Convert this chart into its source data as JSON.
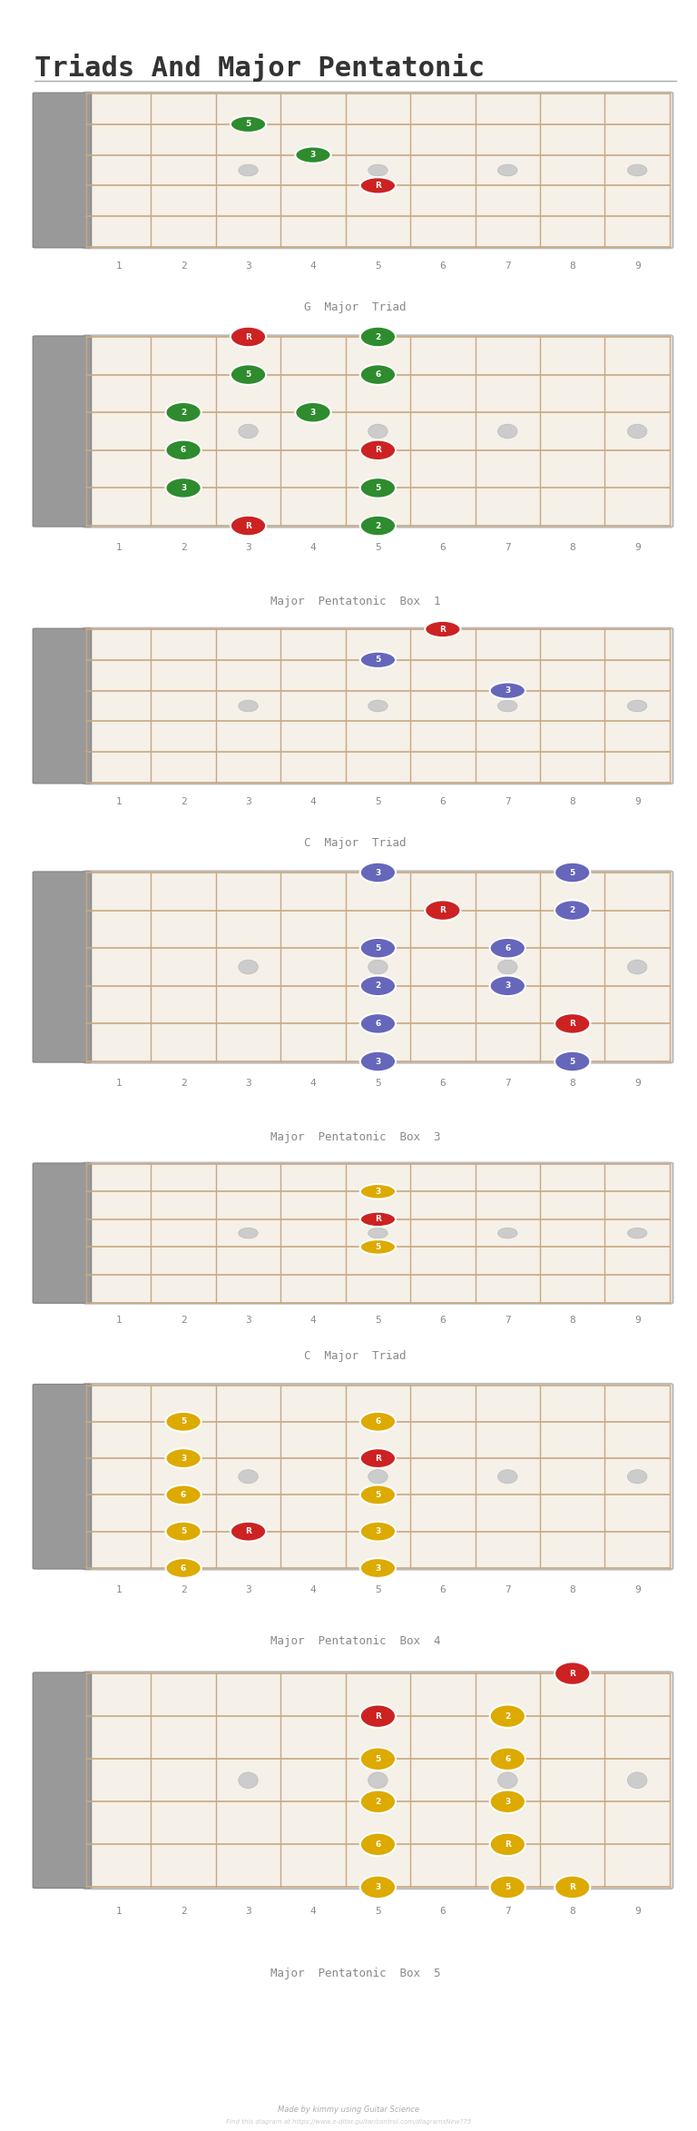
{
  "title": "Triads And Major Pentatonic",
  "bg_color": "#ffffff",
  "fretboard_bg": "#f5f0e8",
  "nut_color": "#999999",
  "string_color": "#c8a882",
  "fret_color": "#c8a882",
  "dot_color": "#cccccc",
  "num_strings": 6,
  "num_frets": 9,
  "diagrams": [
    {
      "title": "G  Major  Triad",
      "notes": [
        {
          "fret": 3,
          "string": 2,
          "label": "5",
          "color": "#2e8b2e"
        },
        {
          "fret": 4,
          "string": 3,
          "label": "3",
          "color": "#2e8b2e"
        },
        {
          "fret": 5,
          "string": 4,
          "label": "R",
          "color": "#cc2222"
        }
      ]
    },
    {
      "title": "Major  Pentatonic  Box  1",
      "notes": [
        {
          "fret": 3,
          "string": 1,
          "label": "R",
          "color": "#cc2222"
        },
        {
          "fret": 3,
          "string": 2,
          "label": "5",
          "color": "#2e8b2e"
        },
        {
          "fret": 2,
          "string": 3,
          "label": "2",
          "color": "#2e8b2e"
        },
        {
          "fret": 2,
          "string": 4,
          "label": "6",
          "color": "#2e8b2e"
        },
        {
          "fret": 2,
          "string": 5,
          "label": "3",
          "color": "#2e8b2e"
        },
        {
          "fret": 3,
          "string": 6,
          "label": "R",
          "color": "#cc2222"
        },
        {
          "fret": 5,
          "string": 1,
          "label": "2",
          "color": "#2e8b2e"
        },
        {
          "fret": 5,
          "string": 2,
          "label": "6",
          "color": "#2e8b2e"
        },
        {
          "fret": 4,
          "string": 3,
          "label": "3",
          "color": "#2e8b2e"
        },
        {
          "fret": 5,
          "string": 4,
          "label": "R",
          "color": "#cc2222"
        },
        {
          "fret": 5,
          "string": 5,
          "label": "5",
          "color": "#2e8b2e"
        },
        {
          "fret": 5,
          "string": 6,
          "label": "2",
          "color": "#2e8b2e"
        }
      ]
    },
    {
      "title": "C  Major  Triad",
      "notes": [
        {
          "fret": 6,
          "string": 1,
          "label": "R",
          "color": "#cc2222"
        },
        {
          "fret": 5,
          "string": 2,
          "label": "5",
          "color": "#6666bb"
        },
        {
          "fret": 7,
          "string": 3,
          "label": "3",
          "color": "#6666bb"
        }
      ]
    },
    {
      "title": "Major  Pentatonic  Box  3",
      "notes": [
        {
          "fret": 5,
          "string": 1,
          "label": "3",
          "color": "#6666bb"
        },
        {
          "fret": 8,
          "string": 1,
          "label": "5",
          "color": "#6666bb"
        },
        {
          "fret": 6,
          "string": 2,
          "label": "R",
          "color": "#cc2222"
        },
        {
          "fret": 8,
          "string": 2,
          "label": "2",
          "color": "#6666bb"
        },
        {
          "fret": 5,
          "string": 3,
          "label": "5",
          "color": "#6666bb"
        },
        {
          "fret": 7,
          "string": 3,
          "label": "6",
          "color": "#6666bb"
        },
        {
          "fret": 5,
          "string": 4,
          "label": "2",
          "color": "#6666bb"
        },
        {
          "fret": 7,
          "string": 4,
          "label": "3",
          "color": "#6666bb"
        },
        {
          "fret": 5,
          "string": 5,
          "label": "6",
          "color": "#6666bb"
        },
        {
          "fret": 8,
          "string": 5,
          "label": "R",
          "color": "#cc2222"
        },
        {
          "fret": 5,
          "string": 6,
          "label": "3",
          "color": "#6666bb"
        },
        {
          "fret": 8,
          "string": 6,
          "label": "5",
          "color": "#6666bb"
        }
      ]
    },
    {
      "title": "C  Major  Triad",
      "notes": [
        {
          "fret": 5,
          "string": 2,
          "label": "3",
          "color": "#ddaa00"
        },
        {
          "fret": 5,
          "string": 3,
          "label": "R",
          "color": "#cc2222"
        },
        {
          "fret": 5,
          "string": 4,
          "label": "5",
          "color": "#ddaa00"
        }
      ]
    },
    {
      "title": "Major  Pentatonic  Box  4",
      "notes": [
        {
          "fret": 2,
          "string": 2,
          "label": "5",
          "color": "#ddaa00"
        },
        {
          "fret": 5,
          "string": 2,
          "label": "6",
          "color": "#ddaa00"
        },
        {
          "fret": 2,
          "string": 3,
          "label": "3",
          "color": "#ddaa00"
        },
        {
          "fret": 5,
          "string": 3,
          "label": "R",
          "color": "#cc2222"
        },
        {
          "fret": 2,
          "string": 4,
          "label": "6",
          "color": "#ddaa00"
        },
        {
          "fret": 5,
          "string": 4,
          "label": "5",
          "color": "#ddaa00"
        },
        {
          "fret": 2,
          "string": 5,
          "label": "5",
          "color": "#ddaa00"
        },
        {
          "fret": 3,
          "string": 5,
          "label": "R",
          "color": "#cc2222"
        },
        {
          "fret": 5,
          "string": 5,
          "label": "3",
          "color": "#ddaa00"
        },
        {
          "fret": 2,
          "string": 6,
          "label": "6",
          "color": "#ddaa00"
        },
        {
          "fret": 5,
          "string": 6,
          "label": "3",
          "color": "#ddaa00"
        }
      ]
    },
    {
      "title": "Major  Pentatonic  Box  5",
      "notes": [
        {
          "fret": 8,
          "string": 1,
          "label": "R",
          "color": "#cc2222"
        },
        {
          "fret": 5,
          "string": 2,
          "label": "R",
          "color": "#cc2222"
        },
        {
          "fret": 7,
          "string": 2,
          "label": "2",
          "color": "#ddaa00"
        },
        {
          "fret": 5,
          "string": 3,
          "label": "5",
          "color": "#ddaa00"
        },
        {
          "fret": 7,
          "string": 3,
          "label": "6",
          "color": "#ddaa00"
        },
        {
          "fret": 5,
          "string": 4,
          "label": "2",
          "color": "#ddaa00"
        },
        {
          "fret": 7,
          "string": 4,
          "label": "3",
          "color": "#ddaa00"
        },
        {
          "fret": 5,
          "string": 5,
          "label": "6",
          "color": "#ddaa00"
        },
        {
          "fret": 7,
          "string": 5,
          "label": "R",
          "color": "#ddaa00"
        },
        {
          "fret": 5,
          "string": 6,
          "label": "3",
          "color": "#ddaa00"
        },
        {
          "fret": 7,
          "string": 6,
          "label": "5",
          "color": "#ddaa00"
        },
        {
          "fret": 8,
          "string": 6,
          "label": "R",
          "color": "#ddaa00"
        }
      ]
    }
  ]
}
